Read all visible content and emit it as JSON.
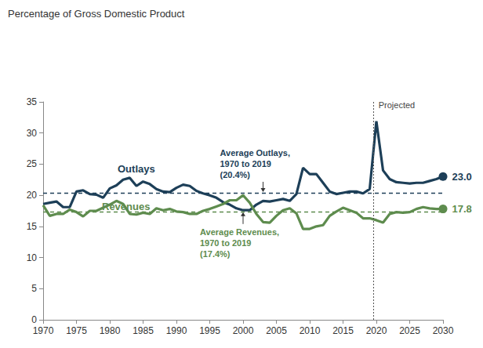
{
  "chart_data": {
    "type": "line",
    "title": "Percentage of Gross Domestic Product",
    "x": [
      1970,
      1971,
      1972,
      1973,
      1974,
      1975,
      1976,
      1977,
      1978,
      1979,
      1980,
      1981,
      1982,
      1983,
      1984,
      1985,
      1986,
      1987,
      1988,
      1989,
      1990,
      1991,
      1992,
      1993,
      1994,
      1995,
      1996,
      1997,
      1998,
      1999,
      2000,
      2001,
      2002,
      2003,
      2004,
      2005,
      2006,
      2007,
      2008,
      2009,
      2010,
      2011,
      2012,
      2013,
      2014,
      2015,
      2016,
      2017,
      2018,
      2019,
      2020,
      2021,
      2022,
      2023,
      2024,
      2025,
      2026,
      2027,
      2028,
      2029,
      2030
    ],
    "series": [
      {
        "name": "Outlays",
        "color": "#1d3f58",
        "values": [
          18.6,
          18.8,
          19.0,
          18.1,
          18.1,
          20.6,
          20.8,
          20.2,
          20.1,
          19.6,
          21.1,
          21.6,
          22.5,
          22.8,
          21.5,
          22.2,
          21.8,
          21.0,
          20.6,
          20.5,
          21.2,
          21.7,
          21.5,
          20.7,
          20.3,
          20.0,
          19.6,
          18.9,
          18.5,
          17.9,
          17.6,
          17.6,
          18.5,
          19.1,
          19.0,
          19.2,
          19.4,
          19.1,
          20.2,
          24.4,
          23.4,
          23.4,
          22.0,
          20.6,
          20.2,
          20.4,
          20.6,
          20.6,
          20.3,
          21.0,
          31.9,
          24.0,
          22.6,
          22.1,
          22.0,
          21.9,
          22.0,
          22.0,
          22.3,
          22.6,
          23.0
        ],
        "value_labels": [
          null,
          null,
          null,
          null,
          null,
          null,
          null,
          null,
          null,
          null,
          null,
          null,
          null,
          null,
          null,
          null,
          null,
          null,
          null,
          null,
          null,
          null,
          null,
          null,
          null,
          null,
          null,
          null,
          null,
          null,
          null,
          null,
          null,
          null,
          null,
          null,
          null,
          null,
          null,
          null,
          null,
          null,
          null,
          null,
          null,
          null,
          null,
          null,
          null,
          null,
          null,
          null,
          null,
          null,
          null,
          null,
          null,
          null,
          null,
          null,
          "23.0"
        ],
        "average": 20.4,
        "average_label": [
          "Average Outlays,",
          "1970 to 2019",
          "(20.4%)"
        ]
      },
      {
        "name": "Revenues",
        "color": "#5e8c4e",
        "values": [
          18.4,
          16.7,
          17.0,
          17.0,
          17.7,
          17.3,
          16.6,
          17.5,
          17.5,
          18.0,
          18.5,
          19.1,
          18.6,
          17.0,
          16.9,
          17.2,
          17.0,
          17.9,
          17.6,
          17.8,
          17.4,
          17.3,
          17.0,
          17.0,
          17.5,
          17.8,
          18.2,
          18.6,
          19.2,
          19.2,
          20.0,
          18.8,
          17.0,
          15.7,
          15.6,
          16.7,
          17.6,
          17.9,
          17.1,
          14.6,
          14.6,
          15.0,
          15.2,
          16.7,
          17.4,
          18.0,
          17.6,
          17.2,
          16.3,
          16.3,
          16.0,
          15.6,
          17.0,
          17.3,
          17.2,
          17.3,
          17.8,
          18.1,
          17.9,
          17.8,
          17.8
        ],
        "value_labels": [
          null,
          null,
          null,
          null,
          null,
          null,
          null,
          null,
          null,
          null,
          null,
          null,
          null,
          null,
          null,
          null,
          null,
          null,
          null,
          null,
          null,
          null,
          null,
          null,
          null,
          null,
          null,
          null,
          null,
          null,
          null,
          null,
          null,
          null,
          null,
          null,
          null,
          null,
          null,
          null,
          null,
          null,
          null,
          null,
          null,
          null,
          null,
          null,
          null,
          null,
          null,
          null,
          null,
          null,
          null,
          null,
          null,
          null,
          null,
          null,
          "17.8"
        ],
        "average": 17.4,
        "average_label": [
          "Average Revenues,",
          "1970 to 2019",
          "(17.4%)"
        ]
      }
    ],
    "projection": {
      "x": 2019.5,
      "label": "Projected"
    },
    "xlim": [
      1970,
      2030
    ],
    "xticks": [
      1970,
      1975,
      1980,
      1985,
      1990,
      1995,
      2000,
      2005,
      2010,
      2015,
      2020,
      2025,
      2030
    ],
    "ylim": [
      0,
      35
    ],
    "yticks": [
      0,
      5,
      10,
      15,
      20,
      25,
      30,
      35
    ],
    "grid": false,
    "legend": "none"
  }
}
